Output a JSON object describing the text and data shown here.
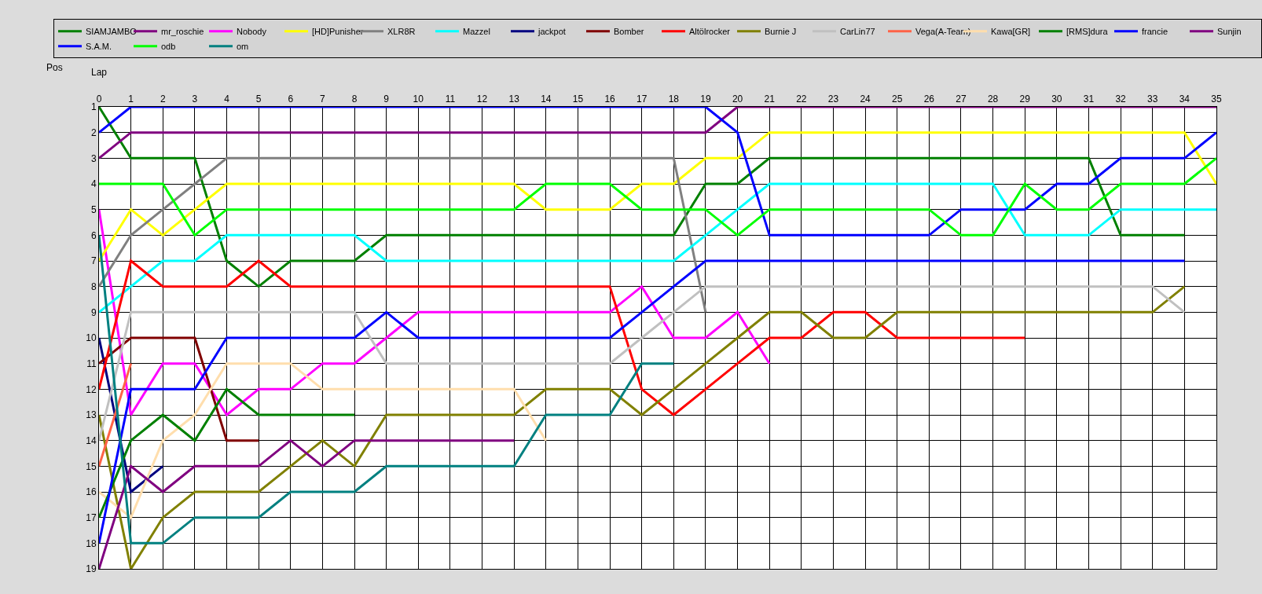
{
  "chart_data": {
    "type": "line",
    "xlabel": "Lap",
    "ylabel": "Pos",
    "x": [
      0,
      1,
      2,
      3,
      4,
      5,
      6,
      7,
      8,
      9,
      10,
      11,
      12,
      13,
      14,
      15,
      16,
      17,
      18,
      19,
      20,
      21,
      22,
      23,
      24,
      25,
      26,
      27,
      28,
      29,
      30,
      31,
      32,
      33,
      34,
      35
    ],
    "xlim": [
      0,
      35
    ],
    "xticks": [
      0,
      1,
      2,
      3,
      4,
      5,
      6,
      7,
      8,
      9,
      10,
      11,
      12,
      13,
      14,
      15,
      16,
      17,
      18,
      19,
      20,
      21,
      22,
      23,
      24,
      25,
      26,
      27,
      28,
      29,
      30,
      31,
      32,
      33,
      34,
      35
    ],
    "ylim": [
      19,
      1
    ],
    "yticks": [
      1,
      2,
      3,
      4,
      5,
      6,
      7,
      8,
      9,
      10,
      11,
      12,
      13,
      14,
      15,
      16,
      17,
      18,
      19
    ],
    "grid": true,
    "legend": "top",
    "marker": "none",
    "line_style": "solid",
    "series": [
      {
        "name": "SIAMJAMBO",
        "color": "#008000",
        "values": [
          1,
          3,
          3,
          3,
          7,
          8,
          7,
          7,
          7,
          6,
          6,
          6,
          6,
          6,
          6,
          6,
          6,
          6,
          6,
          4,
          4,
          3,
          3,
          3,
          3,
          3,
          3,
          3,
          3,
          3,
          3,
          3,
          6,
          6,
          6,
          null
        ]
      },
      {
        "name": "mr_roschie",
        "color": "#800080",
        "values": [
          3,
          2,
          2,
          2,
          2,
          2,
          2,
          2,
          2,
          2,
          2,
          2,
          2,
          2,
          2,
          2,
          2,
          2,
          2,
          2,
          1,
          1,
          1,
          1,
          1,
          1,
          1,
          1,
          1,
          1,
          1,
          1,
          1,
          1,
          1,
          1
        ]
      },
      {
        "name": "Nobody",
        "color": "#ff00ff",
        "values": [
          5,
          13,
          11,
          11,
          13,
          12,
          12,
          11,
          11,
          10,
          9,
          9,
          9,
          9,
          9,
          9,
          9,
          8,
          10,
          10,
          9,
          11,
          null,
          null,
          null,
          null,
          null,
          null,
          null,
          null,
          null,
          null,
          null,
          null,
          null,
          null
        ]
      },
      {
        "name": "[HD]Punisher",
        "color": "#ffff00",
        "values": [
          7,
          5,
          6,
          5,
          4,
          4,
          4,
          4,
          4,
          4,
          4,
          4,
          4,
          4,
          5,
          5,
          5,
          4,
          4,
          3,
          3,
          2,
          2,
          2,
          2,
          2,
          2,
          2,
          2,
          2,
          2,
          2,
          2,
          2,
          2,
          4
        ]
      },
      {
        "name": "XLR8R",
        "color": "#808080",
        "values": [
          8,
          6,
          5,
          4,
          3,
          3,
          3,
          3,
          3,
          3,
          3,
          3,
          3,
          3,
          3,
          3,
          3,
          3,
          3,
          9,
          null,
          null,
          null,
          null,
          null,
          null,
          null,
          null,
          null,
          null,
          null,
          null,
          null,
          null,
          null,
          null
        ]
      },
      {
        "name": "Mazzel",
        "color": "#00ffff",
        "values": [
          9,
          8,
          7,
          7,
          6,
          6,
          6,
          6,
          6,
          7,
          7,
          7,
          7,
          7,
          7,
          7,
          7,
          7,
          7,
          6,
          5,
          4,
          4,
          4,
          4,
          4,
          4,
          4,
          4,
          6,
          6,
          6,
          5,
          5,
          5,
          5
        ]
      },
      {
        "name": "jackpot",
        "color": "#000080",
        "values": [
          10,
          16,
          15,
          null,
          null,
          null,
          null,
          null,
          null,
          null,
          null,
          null,
          null,
          null,
          null,
          null,
          null,
          null,
          null,
          null,
          null,
          null,
          null,
          null,
          null,
          null,
          null,
          null,
          null,
          null,
          null,
          null,
          null,
          null,
          null,
          null
        ]
      },
      {
        "name": "Bomber",
        "color": "#800000",
        "values": [
          11,
          10,
          10,
          10,
          14,
          14,
          null,
          null,
          null,
          null,
          null,
          null,
          null,
          null,
          null,
          null,
          null,
          null,
          null,
          null,
          null,
          null,
          null,
          null,
          null,
          null,
          null,
          null,
          null,
          null,
          null,
          null,
          null,
          null,
          null,
          null
        ]
      },
      {
        "name": "Altölrocker",
        "color": "#ff0000",
        "values": [
          12,
          7,
          8,
          8,
          8,
          7,
          8,
          8,
          8,
          8,
          8,
          8,
          8,
          8,
          8,
          8,
          8,
          12,
          13,
          12,
          11,
          10,
          10,
          9,
          9,
          10,
          10,
          10,
          10,
          10,
          null,
          null,
          null,
          null,
          null,
          null
        ]
      },
      {
        "name": "Burnie J",
        "color": "#808000",
        "values": [
          13,
          19,
          17,
          16,
          16,
          16,
          15,
          14,
          15,
          13,
          13,
          13,
          13,
          13,
          12,
          12,
          12,
          13,
          12,
          11,
          10,
          9,
          9,
          10,
          10,
          9,
          9,
          9,
          9,
          9,
          9,
          9,
          9,
          9,
          8,
          null
        ]
      },
      {
        "name": "CarLin77",
        "color": "#c0c0c0",
        "values": [
          14,
          9,
          9,
          9,
          9,
          9,
          9,
          9,
          9,
          11,
          11,
          11,
          11,
          11,
          11,
          11,
          11,
          10,
          9,
          8,
          8,
          8,
          8,
          8,
          8,
          8,
          8,
          8,
          8,
          8,
          8,
          8,
          8,
          8,
          9,
          null
        ]
      },
      {
        "name": "Vega(A-Team)",
        "color": "#ff6347",
        "values": [
          15,
          11,
          null,
          null,
          null,
          null,
          null,
          null,
          null,
          null,
          null,
          null,
          null,
          null,
          null,
          null,
          null,
          null,
          null,
          null,
          null,
          null,
          null,
          null,
          null,
          null,
          null,
          null,
          null,
          null,
          null,
          null,
          null,
          null,
          null,
          null
        ]
      },
      {
        "name": "Kawa[GR]",
        "color": "#ffdead",
        "values": [
          16,
          17,
          14,
          13,
          11,
          11,
          11,
          12,
          12,
          12,
          12,
          12,
          12,
          12,
          14,
          null,
          null,
          null,
          null,
          null,
          null,
          null,
          null,
          null,
          null,
          null,
          null,
          null,
          null,
          null,
          null,
          null,
          null,
          null,
          null,
          null
        ]
      },
      {
        "name": "[RMS]dura",
        "color": "#008000",
        "values": [
          17,
          14,
          13,
          14,
          12,
          13,
          13,
          13,
          13,
          null,
          null,
          null,
          null,
          null,
          null,
          null,
          null,
          null,
          null,
          null,
          null,
          null,
          null,
          null,
          null,
          null,
          null,
          null,
          null,
          null,
          null,
          null,
          null,
          null,
          null,
          null
        ]
      },
      {
        "name": "francie",
        "color": "#0000ff",
        "values": [
          18,
          12,
          12,
          12,
          10,
          10,
          10,
          10,
          10,
          9,
          10,
          10,
          10,
          10,
          10,
          10,
          10,
          9,
          8,
          7,
          7,
          7,
          7,
          7,
          7,
          7,
          7,
          7,
          7,
          7,
          7,
          7,
          7,
          7,
          7,
          null
        ]
      },
      {
        "name": "Sunjin",
        "color": "#800080",
        "values": [
          19,
          15,
          16,
          15,
          15,
          15,
          14,
          15,
          14,
          14,
          14,
          14,
          14,
          14,
          null,
          null,
          null,
          null,
          null,
          null,
          null,
          null,
          null,
          null,
          null,
          null,
          null,
          null,
          null,
          null,
          null,
          null,
          null,
          null,
          null,
          null
        ]
      },
      {
        "name": "S.A.M.",
        "color": "#0000ff",
        "values": [
          2,
          1,
          1,
          1,
          1,
          1,
          1,
          1,
          1,
          1,
          1,
          1,
          1,
          1,
          1,
          1,
          1,
          1,
          1,
          1,
          2,
          6,
          6,
          6,
          6,
          6,
          6,
          5,
          5,
          5,
          4,
          4,
          3,
          3,
          3,
          2
        ]
      },
      {
        "name": "odb",
        "color": "#00ff00",
        "values": [
          4,
          4,
          4,
          6,
          5,
          5,
          5,
          5,
          5,
          5,
          5,
          5,
          5,
          5,
          4,
          4,
          4,
          5,
          5,
          5,
          6,
          5,
          5,
          5,
          5,
          5,
          5,
          6,
          6,
          4,
          5,
          5,
          4,
          4,
          4,
          3
        ]
      },
      {
        "name": "om",
        "color": "#008080",
        "values": [
          6,
          18,
          18,
          17,
          17,
          17,
          16,
          16,
          16,
          15,
          15,
          15,
          15,
          15,
          13,
          13,
          13,
          11,
          11,
          null,
          null,
          null,
          null,
          null,
          null,
          null,
          null,
          null,
          null,
          null,
          null,
          null,
          null,
          null,
          null,
          null
        ]
      }
    ]
  }
}
